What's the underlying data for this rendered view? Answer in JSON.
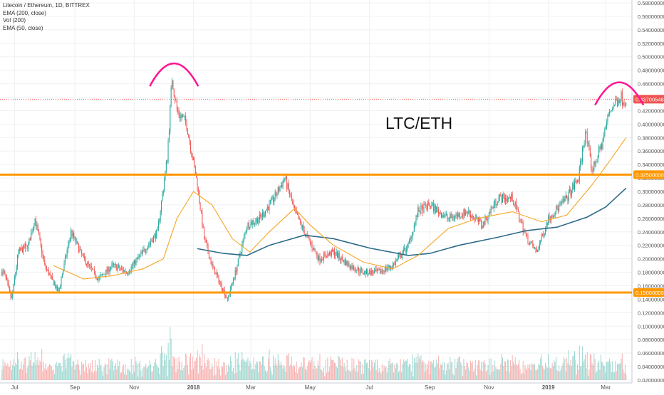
{
  "legend": {
    "symbol_line": "Litecoin / Ethereum, 1D, BITTREX",
    "ema200_line": "EMA (200, close)",
    "vol_line": "Vol (200)",
    "ema50_line": "EMA (50, close)"
  },
  "chart_data": {
    "type": "candlestick",
    "title": "LTC/ETH",
    "symbol": "Litecoin / Ethereum",
    "interval": "1D",
    "exchange": "BITTREX",
    "x_tick_labels": [
      "Jul",
      "Sep",
      "Nov",
      "2018",
      "Mar",
      "May",
      "Jul",
      "Sep",
      "Nov",
      "2019",
      "Mar"
    ],
    "y_tick_labels": [
      "0.58000000",
      "0.56000000",
      "0.54000000",
      "0.52000000",
      "0.50000000",
      "0.48000000",
      "0.46000000",
      "0.44000000",
      "0.42000000",
      "0.40000000",
      "0.38000000",
      "0.36000000",
      "0.34000000",
      "0.32000000",
      "0.30000000",
      "0.28000000",
      "0.26000000",
      "0.24000000",
      "0.22000000",
      "0.20000000",
      "0.18000000",
      "0.16000000",
      "0.14000000",
      "0.12000000",
      "0.10000000",
      "0.08000000",
      "0.06000000",
      "0.04000000",
      "0.02000000"
    ],
    "ylim": [
      0.02,
      0.58
    ],
    "grid": true,
    "price_line": {
      "value": 0.43700548,
      "label": "0.43700548",
      "color": "#ef5350"
    },
    "horizontal_levels": [
      {
        "value": 0.325,
        "label": "0.32500000",
        "color": "#ff9800"
      },
      {
        "value": 0.15,
        "label": "0.15000000",
        "color": "#ff9800"
      }
    ],
    "price_path": {
      "description": "approximate daily closes sampled at key points (month-start keyed)",
      "points": [
        {
          "t": "2017-06-20",
          "v": 0.18
        },
        {
          "t": "2017-06-28",
          "v": 0.14
        },
        {
          "t": "2017-07-05",
          "v": 0.21
        },
        {
          "t": "2017-07-15",
          "v": 0.22
        },
        {
          "t": "2017-07-22",
          "v": 0.26
        },
        {
          "t": "2017-08-01",
          "v": 0.19
        },
        {
          "t": "2017-08-15",
          "v": 0.15
        },
        {
          "t": "2017-08-28",
          "v": 0.24
        },
        {
          "t": "2017-09-10",
          "v": 0.2
        },
        {
          "t": "2017-09-25",
          "v": 0.17
        },
        {
          "t": "2017-10-10",
          "v": 0.19
        },
        {
          "t": "2017-10-25",
          "v": 0.18
        },
        {
          "t": "2017-11-10",
          "v": 0.21
        },
        {
          "t": "2017-11-25",
          "v": 0.24
        },
        {
          "t": "2017-12-05",
          "v": 0.35
        },
        {
          "t": "2017-12-10",
          "v": 0.47
        },
        {
          "t": "2017-12-15",
          "v": 0.42
        },
        {
          "t": "2017-12-25",
          "v": 0.4
        },
        {
          "t": "2018-01-05",
          "v": 0.31
        },
        {
          "t": "2018-01-12",
          "v": 0.23
        },
        {
          "t": "2018-01-20",
          "v": 0.19
        },
        {
          "t": "2018-02-05",
          "v": 0.14
        },
        {
          "t": "2018-02-15",
          "v": 0.19
        },
        {
          "t": "2018-02-25",
          "v": 0.25
        },
        {
          "t": "2018-03-10",
          "v": 0.26
        },
        {
          "t": "2018-03-25",
          "v": 0.29
        },
        {
          "t": "2018-04-05",
          "v": 0.32
        },
        {
          "t": "2018-04-15",
          "v": 0.27
        },
        {
          "t": "2018-04-25",
          "v": 0.24
        },
        {
          "t": "2018-05-10",
          "v": 0.2
        },
        {
          "t": "2018-05-25",
          "v": 0.21
        },
        {
          "t": "2018-06-10",
          "v": 0.19
        },
        {
          "t": "2018-06-25",
          "v": 0.18
        },
        {
          "t": "2018-07-10",
          "v": 0.18
        },
        {
          "t": "2018-07-25",
          "v": 0.19
        },
        {
          "t": "2018-08-10",
          "v": 0.22
        },
        {
          "t": "2018-08-20",
          "v": 0.27
        },
        {
          "t": "2018-09-01",
          "v": 0.28
        },
        {
          "t": "2018-09-20",
          "v": 0.26
        },
        {
          "t": "2018-10-10",
          "v": 0.27
        },
        {
          "t": "2018-10-25",
          "v": 0.25
        },
        {
          "t": "2018-11-10",
          "v": 0.29
        },
        {
          "t": "2018-11-25",
          "v": 0.29
        },
        {
          "t": "2018-12-10",
          "v": 0.23
        },
        {
          "t": "2018-12-20",
          "v": 0.21
        },
        {
          "t": "2019-01-01",
          "v": 0.26
        },
        {
          "t": "2019-01-20",
          "v": 0.29
        },
        {
          "t": "2019-02-01",
          "v": 0.32
        },
        {
          "t": "2019-02-08",
          "v": 0.39
        },
        {
          "t": "2019-02-15",
          "v": 0.33
        },
        {
          "t": "2019-02-25",
          "v": 0.37
        },
        {
          "t": "2019-03-05",
          "v": 0.42
        },
        {
          "t": "2019-03-15",
          "v": 0.44
        },
        {
          "t": "2019-03-22",
          "v": 0.437
        }
      ]
    },
    "ema50": [
      {
        "t": "2017-08-10",
        "v": 0.19
      },
      {
        "t": "2017-09-10",
        "v": 0.17
      },
      {
        "t": "2017-10-10",
        "v": 0.175
      },
      {
        "t": "2017-11-10",
        "v": 0.185
      },
      {
        "t": "2017-12-01",
        "v": 0.2
      },
      {
        "t": "2017-12-15",
        "v": 0.26
      },
      {
        "t": "2018-01-01",
        "v": 0.3
      },
      {
        "t": "2018-01-20",
        "v": 0.28
      },
      {
        "t": "2018-02-10",
        "v": 0.23
      },
      {
        "t": "2018-02-28",
        "v": 0.21
      },
      {
        "t": "2018-03-20",
        "v": 0.24
      },
      {
        "t": "2018-04-15",
        "v": 0.275
      },
      {
        "t": "2018-05-01",
        "v": 0.25
      },
      {
        "t": "2018-05-25",
        "v": 0.22
      },
      {
        "t": "2018-06-25",
        "v": 0.195
      },
      {
        "t": "2018-07-25",
        "v": 0.185
      },
      {
        "t": "2018-08-20",
        "v": 0.205
      },
      {
        "t": "2018-09-20",
        "v": 0.245
      },
      {
        "t": "2018-10-20",
        "v": 0.26
      },
      {
        "t": "2018-11-25",
        "v": 0.27
      },
      {
        "t": "2018-12-25",
        "v": 0.255
      },
      {
        "t": "2019-01-20",
        "v": 0.265
      },
      {
        "t": "2019-02-15",
        "v": 0.31
      },
      {
        "t": "2019-03-05",
        "v": 0.345
      },
      {
        "t": "2019-03-22",
        "v": 0.38
      }
    ],
    "ema200": [
      {
        "t": "2018-01-05",
        "v": 0.215
      },
      {
        "t": "2018-02-01",
        "v": 0.208
      },
      {
        "t": "2018-02-25",
        "v": 0.205
      },
      {
        "t": "2018-03-20",
        "v": 0.22
      },
      {
        "t": "2018-04-25",
        "v": 0.235
      },
      {
        "t": "2018-05-25",
        "v": 0.23
      },
      {
        "t": "2018-07-01",
        "v": 0.216
      },
      {
        "t": "2018-08-10",
        "v": 0.205
      },
      {
        "t": "2018-09-01",
        "v": 0.208
      },
      {
        "t": "2018-10-01",
        "v": 0.22
      },
      {
        "t": "2018-11-10",
        "v": 0.232
      },
      {
        "t": "2018-12-10",
        "v": 0.242
      },
      {
        "t": "2019-01-10",
        "v": 0.247
      },
      {
        "t": "2019-02-10",
        "v": 0.262
      },
      {
        "t": "2019-03-01",
        "v": 0.277
      },
      {
        "t": "2019-03-22",
        "v": 0.305
      }
    ],
    "annotations": [
      {
        "type": "arc",
        "color": "#ff1493",
        "center_t": "2017-12-12",
        "peak_value": 0.49
      },
      {
        "type": "arc",
        "color": "#ff1493",
        "center_t": "2019-03-15",
        "peak_value": 0.462
      }
    ]
  },
  "colors": {
    "up": "#26a69a",
    "down": "#ef5350",
    "ema50": "#f5a623",
    "ema200": "#2e6b8a",
    "level": "#ff9800",
    "grid": "#eef0f3",
    "axis_text": "#555555"
  }
}
